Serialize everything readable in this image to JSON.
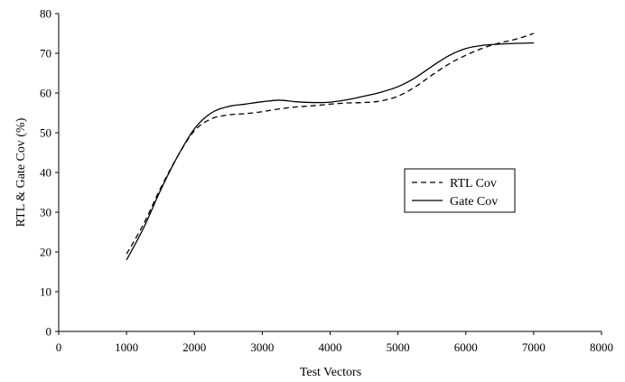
{
  "chart_data": {
    "type": "line",
    "title": "",
    "xlabel": "Test Vectors",
    "ylabel": "RTL & Gate Cov (%)",
    "xlim": [
      0,
      8000
    ],
    "ylim": [
      0,
      80
    ],
    "xticks": [
      0,
      1000,
      2000,
      3000,
      4000,
      5000,
      6000,
      7000,
      8000
    ],
    "yticks": [
      0,
      10,
      20,
      30,
      40,
      50,
      60,
      70,
      80
    ],
    "grid": false,
    "legend_position": "right-middle",
    "series": [
      {
        "name": "RTL Cov",
        "style": "dashed",
        "color": "#000000",
        "points": [
          [
            1000,
            19.5
          ],
          [
            1250,
            27
          ],
          [
            1500,
            36
          ],
          [
            1750,
            44
          ],
          [
            2000,
            50.5
          ],
          [
            2250,
            53.5
          ],
          [
            2500,
            54.5
          ],
          [
            2750,
            54.8
          ],
          [
            3000,
            55.3
          ],
          [
            3250,
            56
          ],
          [
            3500,
            56.5
          ],
          [
            3750,
            56.8
          ],
          [
            4000,
            57.2
          ],
          [
            4250,
            57.5
          ],
          [
            4500,
            57.6
          ],
          [
            4750,
            58
          ],
          [
            5000,
            59.2
          ],
          [
            5250,
            61.5
          ],
          [
            5500,
            64.5
          ],
          [
            5750,
            67.3
          ],
          [
            6000,
            69.5
          ],
          [
            6250,
            71.3
          ],
          [
            6500,
            72.6
          ],
          [
            6750,
            73.6
          ],
          [
            7000,
            75
          ]
        ]
      },
      {
        "name": "Gate Cov",
        "style": "solid",
        "color": "#000000",
        "points": [
          [
            1000,
            18
          ],
          [
            1250,
            26
          ],
          [
            1500,
            35.5
          ],
          [
            1750,
            44
          ],
          [
            2000,
            51
          ],
          [
            2250,
            55
          ],
          [
            2500,
            56.6
          ],
          [
            2750,
            57.2
          ],
          [
            3000,
            57.8
          ],
          [
            3250,
            58.2
          ],
          [
            3500,
            57.8
          ],
          [
            3750,
            57.6
          ],
          [
            4000,
            57.7
          ],
          [
            4250,
            58.3
          ],
          [
            4500,
            59.2
          ],
          [
            4750,
            60.2
          ],
          [
            5000,
            61.6
          ],
          [
            5250,
            63.8
          ],
          [
            5500,
            66.7
          ],
          [
            5750,
            69.4
          ],
          [
            6000,
            71.2
          ],
          [
            6250,
            72
          ],
          [
            6500,
            72.3
          ],
          [
            6750,
            72.5
          ],
          [
            7000,
            72.6
          ]
        ]
      }
    ]
  }
}
